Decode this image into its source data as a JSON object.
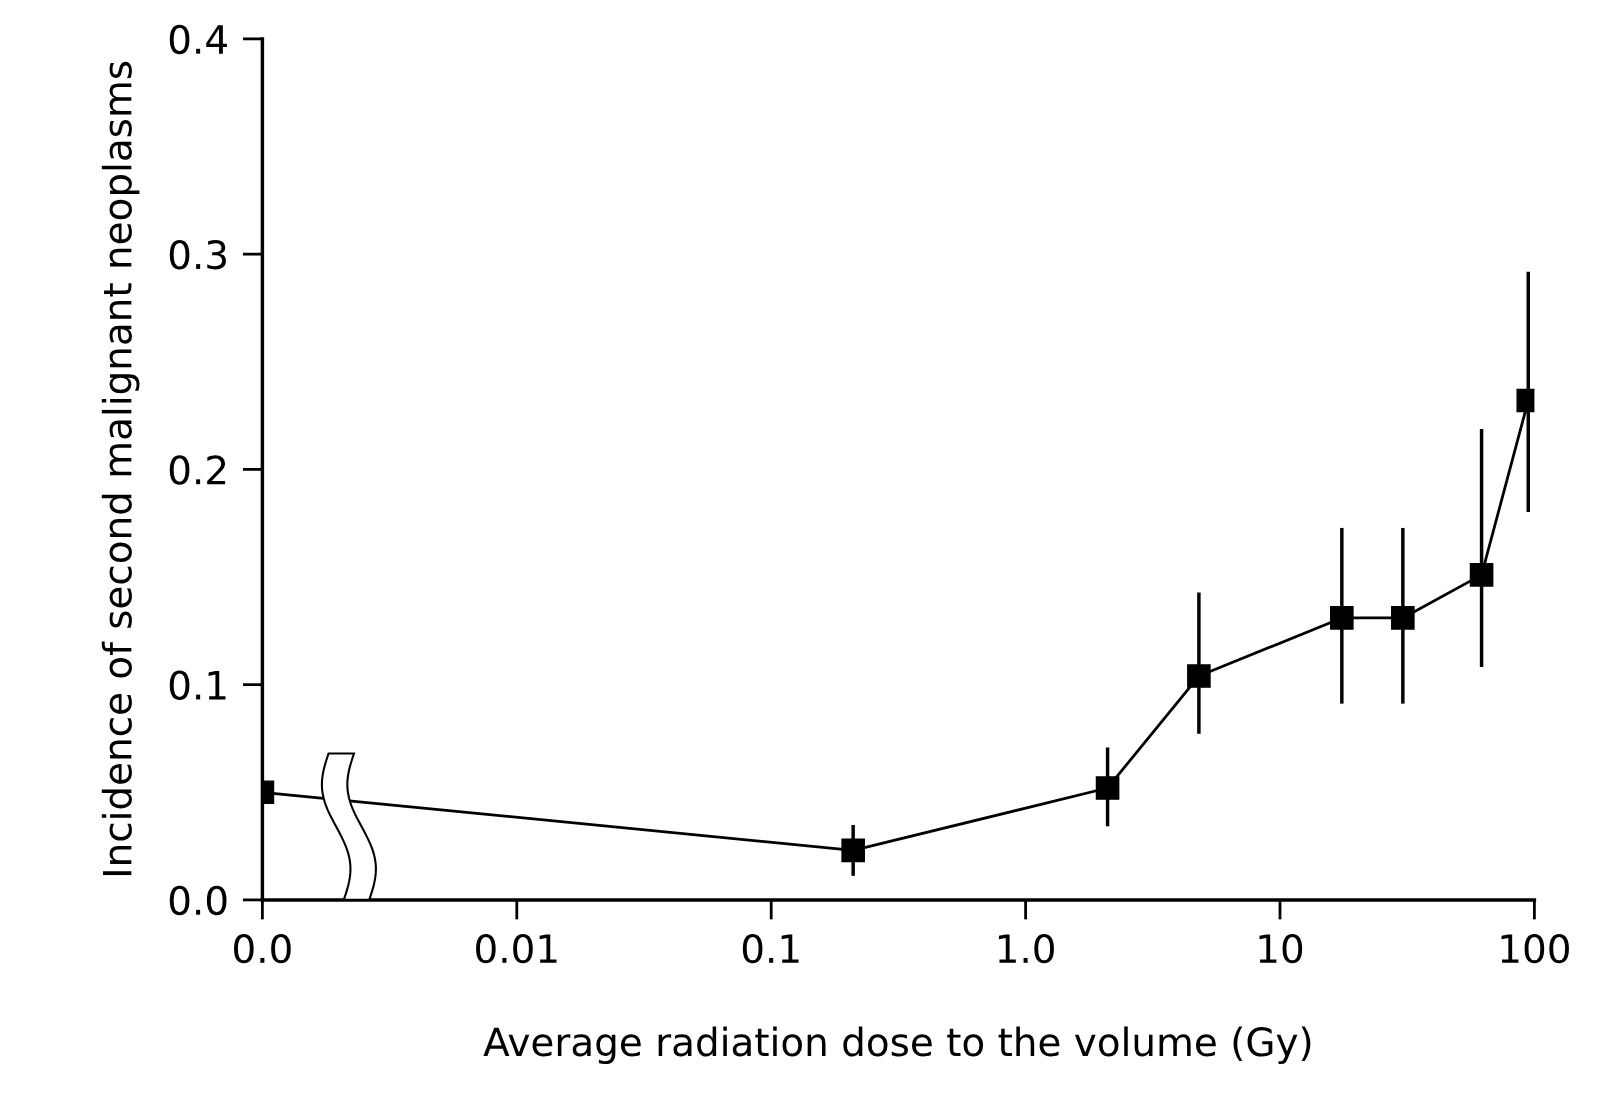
{
  "chart_data": {
    "type": "line",
    "xlabel": "Average radiation dose to the volume (Gy)",
    "ylabel": "Incidence of second malignant neoplasms",
    "log": "x",
    "xlim": [
      0.001,
      100
    ],
    "xticks": [
      {
        "value": 0.001,
        "label": "0.0"
      },
      {
        "value": 0.01,
        "label": "0.01"
      },
      {
        "value": 0.1,
        "label": "0.1"
      },
      {
        "value": 1,
        "label": "1.0"
      },
      10,
      100
    ],
    "ylim": [
      0,
      0.4
    ],
    "yticks": [
      {
        "value": 0,
        "label": "0.0"
      },
      {
        "value": 0.1,
        "label": "0.1"
      },
      {
        "value": 0.2,
        "label": "0.2"
      },
      {
        "value": 0.3,
        "label": "0.3"
      },
      {
        "value": 0.4,
        "label": "0.4"
      }
    ],
    "grid": false,
    "legend": false,
    "marker": "square",
    "line_style": "solid",
    "series": [
      {
        "color": "#000000",
        "x": [
          0.001,
          0.21,
          2.1,
          4.8,
          17.5,
          30.4,
          62,
          94.6
        ],
        "values": [
          0.05,
          0.023,
          0.052,
          0.104,
          0.131,
          0.131,
          0.151,
          0.232
        ],
        "errors": [
          null,
          [
            0.012,
            0.034
          ],
          [
            0.035,
            0.07
          ],
          [
            0.078,
            0.142
          ],
          [
            0.092,
            0.172
          ],
          [
            0.092,
            0.172
          ],
          [
            0.109,
            0.218
          ],
          [
            0.181,
            0.291
          ]
        ]
      }
    ]
  }
}
